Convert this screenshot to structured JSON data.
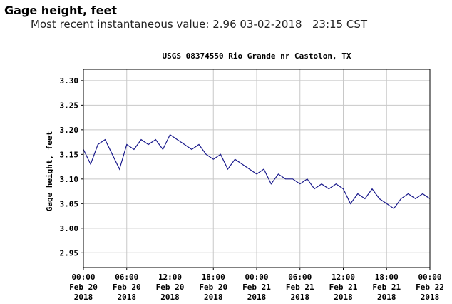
{
  "header": {
    "title": "Gage height, feet",
    "subtitle": "Most recent instantaneous value: 2.96 03-02-2018   23:15 CST"
  },
  "chart_data": {
    "type": "line",
    "title": "USGS 08374550 Rio Grande nr Castolon, TX",
    "y_label": "Gage height, feet",
    "color": "#1a1a8c",
    "grid": true,
    "x": [
      "2018-02-20 00:00",
      "2018-02-20 01:00",
      "2018-02-20 02:00",
      "2018-02-20 03:00",
      "2018-02-20 04:00",
      "2018-02-20 05:00",
      "2018-02-20 06:00",
      "2018-02-20 07:00",
      "2018-02-20 08:00",
      "2018-02-20 09:00",
      "2018-02-20 10:00",
      "2018-02-20 11:00",
      "2018-02-20 12:00",
      "2018-02-20 13:00",
      "2018-02-20 14:00",
      "2018-02-20 15:00",
      "2018-02-20 16:00",
      "2018-02-20 17:00",
      "2018-02-20 18:00",
      "2018-02-20 19:00",
      "2018-02-20 20:00",
      "2018-02-20 21:00",
      "2018-02-20 22:00",
      "2018-02-20 23:00",
      "2018-02-21 00:00",
      "2018-02-21 01:00",
      "2018-02-21 02:00",
      "2018-02-21 03:00",
      "2018-02-21 04:00",
      "2018-02-21 05:00",
      "2018-02-21 06:00",
      "2018-02-21 07:00",
      "2018-02-21 08:00",
      "2018-02-21 09:00",
      "2018-02-21 10:00",
      "2018-02-21 11:00",
      "2018-02-21 12:00",
      "2018-02-21 13:00",
      "2018-02-21 14:00",
      "2018-02-21 15:00",
      "2018-02-21 16:00",
      "2018-02-21 17:00",
      "2018-02-21 18:00",
      "2018-02-21 19:00",
      "2018-02-21 20:00",
      "2018-02-21 21:00",
      "2018-02-21 22:00",
      "2018-02-21 23:00",
      "2018-02-22 00:00"
    ],
    "values": [
      3.16,
      3.13,
      3.17,
      3.18,
      3.15,
      3.12,
      3.17,
      3.16,
      3.18,
      3.17,
      3.18,
      3.16,
      3.19,
      3.18,
      3.17,
      3.16,
      3.17,
      3.15,
      3.14,
      3.15,
      3.12,
      3.14,
      3.13,
      3.12,
      3.11,
      3.12,
      3.09,
      3.11,
      3.1,
      3.1,
      3.09,
      3.1,
      3.08,
      3.09,
      3.08,
      3.09,
      3.08,
      3.05,
      3.07,
      3.06,
      3.08,
      3.06,
      3.05,
      3.04,
      3.06,
      3.07,
      3.06,
      3.07,
      3.06
    ],
    "xlim": [
      "2018-02-20 00:00",
      "2018-02-22 00:00"
    ],
    "xticks": [
      {
        "value": "2018-02-20 00:00",
        "label": [
          "00:00",
          "Feb 20",
          "2018"
        ]
      },
      {
        "value": "2018-02-20 06:00",
        "label": [
          "06:00",
          "Feb 20",
          "2018"
        ]
      },
      {
        "value": "2018-02-20 12:00",
        "label": [
          "12:00",
          "Feb 20",
          "2018"
        ]
      },
      {
        "value": "2018-02-20 18:00",
        "label": [
          "18:00",
          "Feb 20",
          "2018"
        ]
      },
      {
        "value": "2018-02-21 00:00",
        "label": [
          "00:00",
          "Feb 21",
          "2018"
        ]
      },
      {
        "value": "2018-02-21 06:00",
        "label": [
          "06:00",
          "Feb 21",
          "2018"
        ]
      },
      {
        "value": "2018-02-21 12:00",
        "label": [
          "12:00",
          "Feb 21",
          "2018"
        ]
      },
      {
        "value": "2018-02-21 18:00",
        "label": [
          "18:00",
          "Feb 21",
          "2018"
        ]
      },
      {
        "value": "2018-02-22 00:00",
        "label": [
          "00:00",
          "Feb 22",
          "2018"
        ]
      }
    ],
    "ylim": [
      2.92,
      3.323
    ],
    "yticks": [
      2.95,
      {
        "value": 3.0,
        "label": "3.00"
      },
      3.05,
      {
        "value": 3.1,
        "label": "3.10"
      },
      3.15,
      {
        "value": 3.2,
        "label": "3.20"
      },
      3.25,
      {
        "value": 3.3,
        "label": "3.30"
      }
    ]
  }
}
